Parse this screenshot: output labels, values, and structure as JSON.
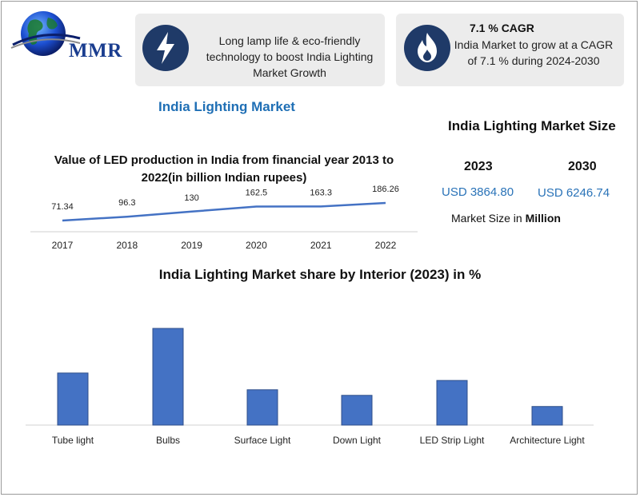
{
  "brand": {
    "logo_text": "MMR",
    "market_title": "India Lighting Market"
  },
  "cards": [
    {
      "icon": "lightning-bolt-icon",
      "text": "Long lamp life & eco-friendly technology to boost India Lighting Market Growth"
    },
    {
      "icon": "flame-icon",
      "title": "7.1 % CAGR",
      "text": "India Market to grow at a CAGR of 7.1 % during 2024-2030"
    }
  ],
  "market_size": {
    "title": "India Lighting Market Size",
    "year_a": "2023",
    "value_a": "USD 3864.80",
    "year_b": "2030",
    "value_b": "USD 6246.74",
    "note_prefix": "Market Size in",
    "note_unit": "Million"
  },
  "colors": {
    "accent_blue": "#4472c4",
    "brand_blue": "#1f6fb5",
    "icon_bg": "#1f3a68",
    "card_bg": "#ececec"
  },
  "chart_data": [
    {
      "type": "line",
      "title": "Value of LED production in India from financial year 2013 to 2022(in billion Indian rupees)",
      "x": [
        "2017",
        "2018",
        "2019",
        "2020",
        "2021",
        "2022"
      ],
      "series": [
        {
          "values": [
            71.34,
            96.3,
            130,
            162.5,
            163.3,
            186.26
          ]
        }
      ],
      "value_labels": [
        "71.34",
        "96.3",
        "130",
        "162.5",
        "163.3",
        "186.26"
      ],
      "xlabel": "",
      "ylabel": "",
      "grid": false
    },
    {
      "type": "bar",
      "title": "India Lighting Market share by Interior (2023) in %",
      "categories": [
        "Tube light",
        "Bulbs",
        "Surface Light",
        "Down Light",
        "LED Strip Light",
        "Architecture Light"
      ],
      "values": [
        28,
        52,
        19,
        16,
        24,
        10
      ],
      "xlabel": "",
      "ylabel": "",
      "grid": false
    }
  ]
}
